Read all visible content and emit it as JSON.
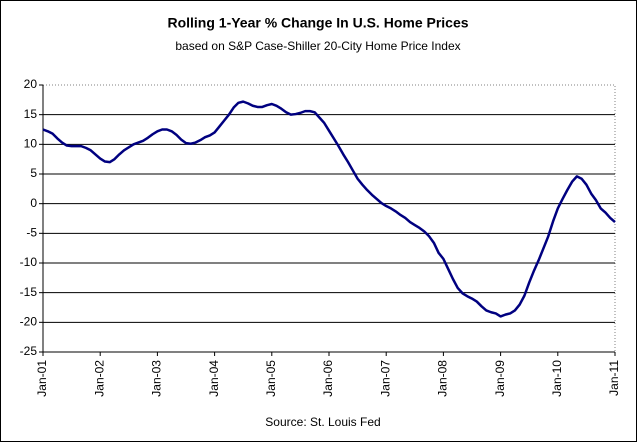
{
  "chart_data": {
    "type": "line",
    "title": "Rolling 1-Year % Change In U.S. Home Prices",
    "subtitle": "based on S&P Case-Shiller 20-City Home Price Index",
    "source": "Source: St. Louis Fed",
    "categories": [
      "Jan-01",
      null,
      null,
      null,
      null,
      null,
      null,
      null,
      null,
      null,
      null,
      null,
      "Jan-02",
      null,
      null,
      null,
      null,
      null,
      null,
      null,
      null,
      null,
      null,
      null,
      "Jan-03",
      null,
      null,
      null,
      null,
      null,
      null,
      null,
      null,
      null,
      null,
      null,
      "Jan-04",
      null,
      null,
      null,
      null,
      null,
      null,
      null,
      null,
      null,
      null,
      null,
      "Jan-05",
      null,
      null,
      null,
      null,
      null,
      null,
      null,
      null,
      null,
      null,
      null,
      "Jan-06",
      null,
      null,
      null,
      null,
      null,
      null,
      null,
      null,
      null,
      null,
      null,
      "Jan-07",
      null,
      null,
      null,
      null,
      null,
      null,
      null,
      null,
      null,
      null,
      null,
      "Jan-08",
      null,
      null,
      null,
      null,
      null,
      null,
      null,
      null,
      null,
      null,
      null,
      "Jan-09",
      null,
      null,
      null,
      null,
      null,
      null,
      null,
      null,
      null,
      null,
      null,
      "Jan-10",
      null,
      null,
      null,
      null,
      null,
      null,
      null,
      null,
      null,
      null,
      null,
      "Jan-11"
    ],
    "values": [
      12.5,
      12.2,
      11.8,
      11,
      10.3,
      9.8,
      9.7,
      9.7,
      9.7,
      9.4,
      9,
      8.3,
      7.6,
      7.1,
      7.0,
      7.5,
      8.3,
      9,
      9.5,
      10,
      10.3,
      10.6,
      11.1,
      11.7,
      12.2,
      12.5,
      12.5,
      12.2,
      11.6,
      10.8,
      10.2,
      10.1,
      10.3,
      10.7,
      11.2,
      11.5,
      12,
      13,
      14,
      15,
      16.2,
      17,
      17.2,
      16.9,
      16.5,
      16.3,
      16.3,
      16.6,
      16.8,
      16.5,
      16,
      15.4,
      15,
      15.1,
      15.3,
      15.6,
      15.6,
      15.4,
      14.5,
      13.6,
      12.3,
      11,
      9.7,
      8.3,
      7,
      5.6,
      4.2,
      3.2,
      2.3,
      1.5,
      0.8,
      0.1,
      -0.4,
      -0.8,
      -1.3,
      -1.9,
      -2.4,
      -3.1,
      -3.6,
      -4.1,
      -4.7,
      -5.5,
      -6.6,
      -8.3,
      -9.3,
      -11,
      -12.7,
      -14.2,
      -15.1,
      -15.6,
      -16,
      -16.5,
      -17.3,
      -18,
      -18.3,
      -18.5,
      -19,
      -18.7,
      -18.5,
      -18,
      -17,
      -15.5,
      -13.3,
      -11.3,
      -9.5,
      -7.5,
      -5.5,
      -3,
      -0.8,
      0.8,
      2.3,
      3.7,
      4.6,
      4.2,
      3.2,
      1.7,
      0.6,
      -0.8,
      -1.5,
      -2.4,
      -3.1
    ],
    "color": "#000080",
    "ylim": [
      -25,
      20
    ],
    "yticks": [
      -25,
      -20,
      -15,
      -10,
      -5,
      0,
      5,
      10,
      15,
      20
    ],
    "grid": true
  }
}
